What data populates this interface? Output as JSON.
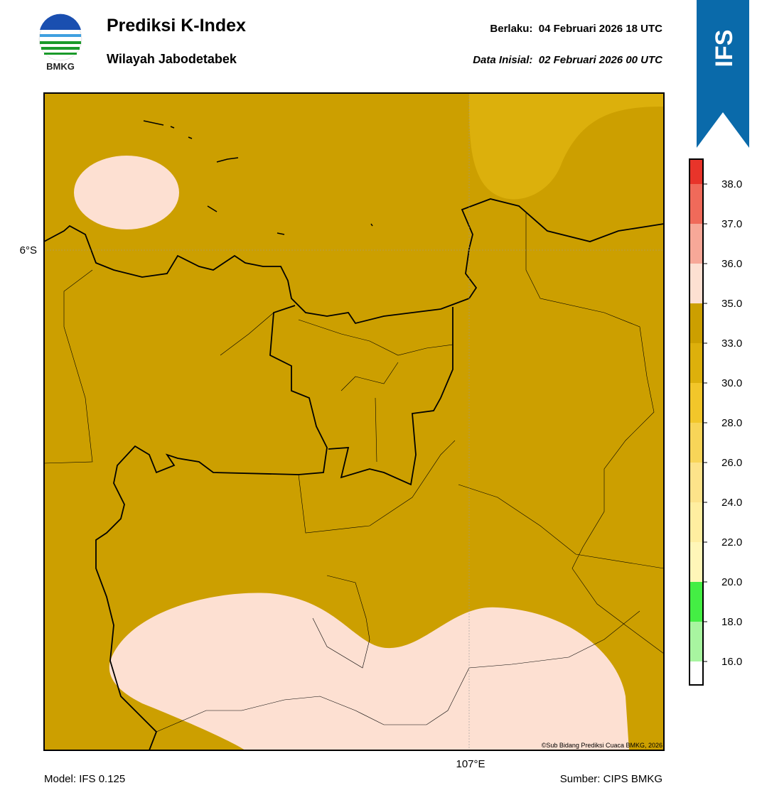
{
  "header": {
    "title": "Prediksi K-Index",
    "subtitle": "Wilayah Jabodetabek",
    "valid": "Berlaku:  04 Februari 2026 18 UTC",
    "init": "Data Inisial:  02 Februari 2026 00 UTC",
    "logo": "BMKG",
    "badge": "IFS"
  },
  "map": {
    "lat_label": "6°S",
    "lon_label": "107°E",
    "credit": "©Sub Bidang Prediksi Cuaca BMKG, 2026"
  },
  "colorbar": {
    "ticks": [
      {
        "value": 16,
        "label": "16.0"
      },
      {
        "value": 18,
        "label": "18.0"
      },
      {
        "value": 20,
        "label": "20.0"
      },
      {
        "value": 22,
        "label": "22.0"
      },
      {
        "value": 24,
        "label": "24.0"
      },
      {
        "value": 26,
        "label": "26.0"
      },
      {
        "value": 28,
        "label": "28.0"
      },
      {
        "value": 30,
        "label": "30.0"
      },
      {
        "value": 33,
        "label": "33.0"
      },
      {
        "value": 35,
        "label": "35.0"
      },
      {
        "value": 36,
        "label": "36.0"
      },
      {
        "value": 37,
        "label": "37.0"
      },
      {
        "value": 38,
        "label": "38.0"
      }
    ],
    "colors": [
      "#ffffff",
      "#a8f5a0",
      "#44ee44",
      "#fff6b8",
      "#ffeea0",
      "#fde38a",
      "#f8d558",
      "#f2c62a",
      "#ddb00c",
      "#cc9f00",
      "#fde0d2",
      "#f7a898",
      "#f06a5a",
      "#e8342a"
    ]
  },
  "footer": {
    "model": "Model: IFS 0.125",
    "source": "Sumber: CIPS BMKG"
  }
}
